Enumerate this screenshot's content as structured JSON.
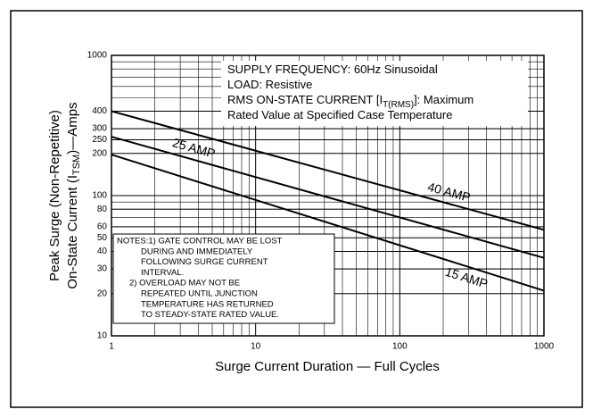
{
  "chart_data": {
    "type": "line",
    "log_x": true,
    "log_y": true,
    "grid": true,
    "x_label": "Surge Current Duration — Full Cycles",
    "y_label": [
      "Peak Surge (Non-Repetitive)",
      [
        "On-State Current (I",
        "TSM",
        ")—Amps"
      ]
    ],
    "xlim": [
      1,
      1000
    ],
    "ylim": [
      10,
      1000
    ],
    "xticks": [
      1,
      10,
      100,
      1000
    ],
    "yticks": [
      10,
      20,
      30,
      40,
      50,
      60,
      80,
      100,
      200,
      250,
      300,
      400,
      1000
    ],
    "xminor": [
      2,
      3,
      4,
      5,
      6,
      7,
      8,
      9,
      20,
      30,
      40,
      50,
      60,
      70,
      80,
      90,
      200,
      300,
      400,
      500,
      600,
      700,
      800,
      900
    ],
    "yminor": [
      20,
      30,
      40,
      50,
      60,
      70,
      80,
      90,
      200,
      300,
      400,
      500,
      600,
      700,
      800,
      900
    ],
    "x": [
      1,
      1000
    ],
    "series": [
      {
        "name": "40 AMP",
        "color": "#000000",
        "values": [
          400,
          57
        ]
      },
      {
        "name": "25 AMP",
        "color": "#000000",
        "values": [
          263,
          36
        ]
      },
      {
        "name": "15 AMP",
        "color": "#000000",
        "values": [
          196,
          21
        ]
      }
    ],
    "annotation": [
      [
        "SUPPLY FREQUENCY: 60Hz Sinusoidal"
      ],
      [
        "LOAD: Resistive"
      ],
      [
        "RMS ON-STATE CURRENT [I",
        "T(RMS)",
        "]: Maximum"
      ],
      [
        "Rated Value at Specified Case Temperature"
      ]
    ],
    "notes": [
      "NOTES:1) GATE CONTROL MAY BE LOST",
      "DURING AND IMMEDIATELY",
      "FOLLOWING SURGE CURRENT",
      "INTERVAL.",
      "2) OVERLOAD MAY NOT BE",
      "REPEATED UNTIL JUNCTION",
      "TEMPERATURE HAS RETURNED",
      "TO STEADY-STATE RATED VALUE."
    ]
  }
}
